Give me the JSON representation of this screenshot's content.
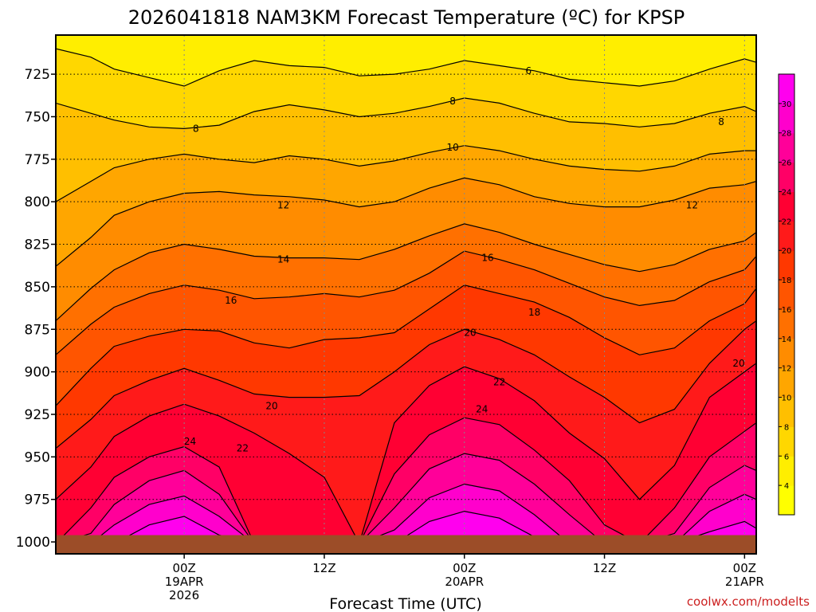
{
  "chart_data": {
    "type": "contour",
    "title": "2026041818 NAM3KM Forecast Temperature (ºC) for KPSP",
    "xlabel": "Forecast Time (UTC)",
    "ylabel": "",
    "y_axis": {
      "ticks": [
        "725",
        "750",
        "775",
        "800",
        "825",
        "850",
        "875",
        "900",
        "925",
        "950",
        "975",
        "1000"
      ],
      "values": [
        725,
        750,
        775,
        800,
        825,
        850,
        875,
        900,
        925,
        950,
        975,
        1000
      ],
      "range": [
        702,
        1007
      ],
      "inverted": true
    },
    "x_axis": {
      "range_hours": [
        -5,
        55
      ],
      "ticks": [
        {
          "hours": 6,
          "lines": [
            "00Z",
            "19APR",
            "2026"
          ]
        },
        {
          "hours": 18,
          "lines": [
            "12Z"
          ]
        },
        {
          "hours": 30,
          "lines": [
            "00Z",
            "20APR"
          ]
        },
        {
          "hours": 42,
          "lines": [
            "12Z"
          ]
        },
        {
          "hours": 54,
          "lines": [
            "00Z",
            "21APR"
          ]
        }
      ]
    },
    "grid": true,
    "colorbar": {
      "ticks": [
        "4",
        "6",
        "8",
        "10",
        "12",
        "14",
        "16",
        "18",
        "20",
        "22",
        "24",
        "26",
        "28",
        "30"
      ],
      "levels": [
        4,
        6,
        8,
        10,
        12,
        14,
        16,
        18,
        20,
        22,
        24,
        26,
        28,
        30
      ],
      "colors": [
        "#ffff00",
        "#ffee00",
        "#ffd700",
        "#ffbf00",
        "#ffa600",
        "#ff8c00",
        "#ff7000",
        "#ff5500",
        "#ff3800",
        "#ff1a1a",
        "#ff0033",
        "#ff0066",
        "#ff0099",
        "#ff00cc",
        "#ff00ee"
      ]
    },
    "contour_levels": [
      6,
      8,
      10,
      12,
      14,
      16,
      18,
      20,
      22,
      24,
      26,
      28,
      30
    ],
    "contour_profile_hours": [
      -5,
      -2,
      0,
      3,
      6,
      9,
      12,
      15,
      18,
      21,
      24,
      27,
      30,
      33,
      36,
      39,
      42,
      45,
      48,
      51,
      54,
      55
    ],
    "contours": [
      {
        "level": 6,
        "p": [
          710,
          715,
          722,
          727,
          732,
          723,
          717,
          720,
          721,
          726,
          725,
          722,
          717,
          720,
          723,
          728,
          730,
          732,
          729,
          722,
          716,
          718
        ]
      },
      {
        "level": 8,
        "p": [
          742,
          748,
          752,
          756,
          757,
          755,
          747,
          743,
          746,
          750,
          748,
          744,
          739,
          742,
          748,
          753,
          754,
          756,
          754,
          748,
          744,
          747
        ]
      },
      {
        "level": 10,
        "p": [
          800,
          788,
          780,
          775,
          772,
          775,
          777,
          773,
          775,
          779,
          776,
          771,
          767,
          770,
          775,
          779,
          781,
          782,
          779,
          772,
          770,
          770
        ]
      },
      {
        "level": 12,
        "p": [
          838,
          821,
          808,
          800,
          795,
          794,
          796,
          797,
          799,
          803,
          800,
          792,
          786,
          790,
          797,
          801,
          803,
          803,
          799,
          792,
          790,
          788
        ]
      },
      {
        "level": 14,
        "p": [
          870,
          851,
          840,
          830,
          825,
          828,
          832,
          833,
          833,
          834,
          828,
          820,
          813,
          818,
          825,
          831,
          837,
          841,
          837,
          828,
          823,
          818
        ]
      },
      {
        "level": 16,
        "p": [
          890,
          872,
          862,
          854,
          849,
          852,
          857,
          856,
          854,
          856,
          852,
          842,
          829,
          834,
          840,
          848,
          856,
          861,
          858,
          847,
          840,
          832
        ]
      },
      {
        "level": 18,
        "p": [
          920,
          898,
          885,
          879,
          875,
          876,
          883,
          886,
          881,
          880,
          877,
          863,
          849,
          854,
          859,
          868,
          880,
          890,
          886,
          870,
          860,
          851
        ]
      },
      {
        "level": 20,
        "p": [
          945,
          928,
          914,
          905,
          898,
          905,
          913,
          915,
          915,
          914,
          900,
          884,
          875,
          881,
          890,
          903,
          915,
          930,
          922,
          895,
          875,
          870
        ]
      },
      {
        "level": 22,
        "p": [
          975,
          956,
          938,
          926,
          919,
          926,
          936,
          948,
          962,
          1001,
          930,
          908,
          897,
          904,
          917,
          936,
          951,
          975,
          955,
          915,
          900,
          895
        ]
      },
      {
        "level": 24,
        "p": [
          1001,
          980,
          962,
          950,
          944,
          956,
          1001,
          1001,
          1001,
          1001,
          960,
          937,
          927,
          931,
          946,
          964,
          990,
          1001,
          980,
          950,
          935,
          930
        ]
      },
      {
        "level": 26,
        "p": [
          1001,
          995,
          978,
          964,
          958,
          972,
          1001,
          1001,
          1001,
          1001,
          980,
          957,
          948,
          952,
          966,
          984,
          1001,
          1001,
          995,
          968,
          955,
          958
        ]
      },
      {
        "level": 28,
        "p": [
          1001,
          1001,
          990,
          978,
          973,
          985,
          1001,
          1001,
          1001,
          1001,
          993,
          974,
          966,
          970,
          984,
          1001,
          1001,
          1001,
          1001,
          982,
          972,
          975
        ]
      },
      {
        "level": 30,
        "p": [
          1001,
          1001,
          1001,
          990,
          985,
          996,
          1001,
          1001,
          1001,
          1001,
          1001,
          988,
          982,
          986,
          997,
          1001,
          1001,
          1001,
          1001,
          994,
          988,
          992
        ]
      }
    ],
    "contour_labels": [
      {
        "text": "6",
        "hours": 35.5,
        "p": 723
      },
      {
        "text": "8",
        "hours": 29.0,
        "p": 741
      },
      {
        "text": "8",
        "hours": 7.0,
        "p": 757
      },
      {
        "text": "8",
        "hours": 52.0,
        "p": 753
      },
      {
        "text": "10",
        "hours": 29.0,
        "p": 768
      },
      {
        "text": "12",
        "hours": 14.5,
        "p": 802
      },
      {
        "text": "12",
        "hours": 49.5,
        "p": 802
      },
      {
        "text": "14",
        "hours": 14.5,
        "p": 834
      },
      {
        "text": "16",
        "hours": 32.0,
        "p": 833
      },
      {
        "text": "16",
        "hours": 10.0,
        "p": 858
      },
      {
        "text": "18",
        "hours": 36.0,
        "p": 865
      },
      {
        "text": "20",
        "hours": 30.5,
        "p": 877
      },
      {
        "text": "20",
        "hours": 53.5,
        "p": 895
      },
      {
        "text": "20",
        "hours": 13.5,
        "p": 920
      },
      {
        "text": "22",
        "hours": 33.0,
        "p": 906
      },
      {
        "text": "22",
        "hours": 11.0,
        "p": 945
      },
      {
        "text": "24",
        "hours": 31.5,
        "p": 922
      },
      {
        "text": "24",
        "hours": 6.5,
        "p": 941
      }
    ],
    "surface_pressure": 996
  },
  "credit": "coolwx.com/modelts"
}
